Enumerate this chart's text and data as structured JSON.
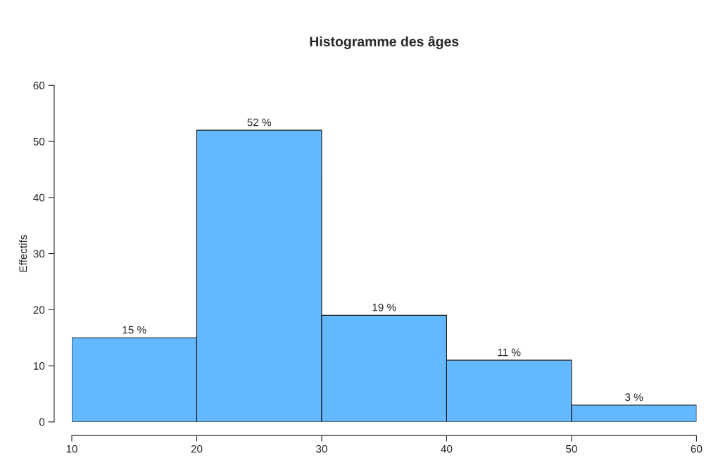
{
  "chart_data": {
    "type": "histogram",
    "title": "Histogramme des âges",
    "ylabel": "Effectifs",
    "bins": [
      10,
      20,
      30,
      40,
      50,
      60
    ],
    "values": [
      15,
      52,
      19,
      11,
      3
    ],
    "color": "#63b8ff",
    "value_labels": [
      "15 %",
      "52 %",
      "19 %",
      "11 %",
      "3 %"
    ],
    "xlim": [
      10,
      60
    ],
    "xticks": [
      10,
      20,
      30,
      40,
      50,
      60
    ],
    "ylim": [
      0,
      60
    ],
    "yticks": [
      0,
      10,
      20,
      30,
      40,
      50,
      60
    ],
    "grid": false,
    "legend": false
  }
}
